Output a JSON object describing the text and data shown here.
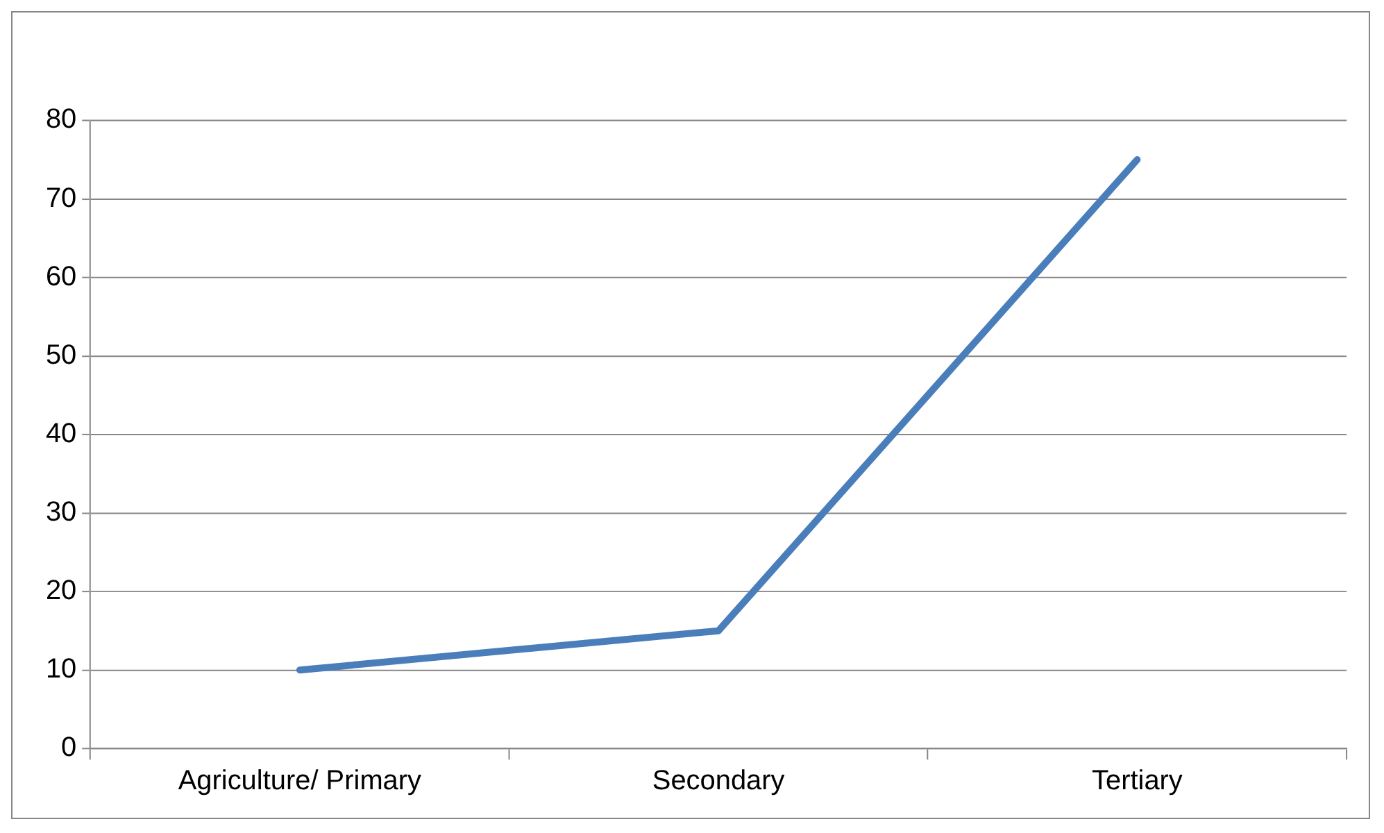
{
  "chart_data": {
    "type": "line",
    "categories": [
      "Agriculture/ Primary",
      "Secondary",
      "Tertiary"
    ],
    "series": [
      {
        "color": "#4a7ebb",
        "values": [
          10,
          15,
          75
        ]
      }
    ],
    "ylim": [
      0,
      80
    ],
    "yticks": [
      0,
      10,
      20,
      30,
      40,
      50,
      60,
      70,
      80
    ],
    "grid": "y",
    "legend": false,
    "marker": "none",
    "line_style": "solid"
  }
}
